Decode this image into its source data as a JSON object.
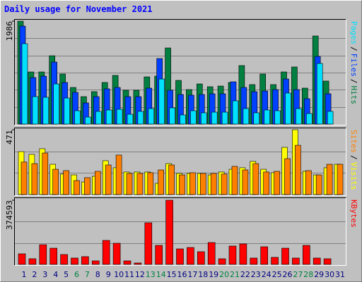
{
  "chart_data": [
    {
      "type": "bar",
      "title": "Daily usage for November 2021",
      "separator": "/",
      "ylim": [
        0,
        1986
      ],
      "yticks": [
        1986
      ],
      "series": [
        {
          "name": "Hits",
          "color": "#008040",
          "values": [
            1986,
            1006,
            1006,
            1319,
            966,
            707,
            530,
            626,
            803,
            939,
            653,
            653,
            911,
            925,
            1469,
            843,
            666,
            775,
            721,
            734,
            803,
            1129,
            762,
            966,
            762,
            1006,
            1102,
            694,
            1700,
            830,
            0
          ]
        },
        {
          "name": "Files",
          "color": "#0040ff",
          "values": [
            1891,
            898,
            925,
            1197,
            803,
            612,
            408,
            530,
            680,
            707,
            530,
            530,
            694,
            1265,
            653,
            571,
            558,
            571,
            585,
            585,
            816,
            707,
            626,
            639,
            666,
            870,
            666,
            490,
            1306,
            585,
            0
          ]
        },
        {
          "name": "Pages",
          "color": "#00e0ff",
          "values": [
            1551,
            530,
            517,
            775,
            503,
            258,
            136,
            245,
            272,
            286,
            190,
            245,
            299,
            870,
            313,
            177,
            258,
            218,
            231,
            231,
            449,
            299,
            218,
            272,
            258,
            599,
            299,
            204,
            1170,
            245,
            0
          ]
        }
      ]
    },
    {
      "type": "bar",
      "separator": "/",
      "ylim": [
        0,
        471
      ],
      "yticks": [
        471
      ],
      "series": [
        {
          "name": "Visits",
          "color": "#ffff00",
          "values": [
            312,
            292,
            333,
            220,
            149,
            143,
            92,
            133,
            246,
            195,
            164,
            164,
            164,
            82,
            225,
            154,
            154,
            154,
            143,
            164,
            184,
            195,
            241,
            184,
            159,
            343,
            471,
            169,
            143,
            195,
            220
          ]
        },
        {
          "name": "Sites",
          "color": "#ff8000",
          "values": [
            236,
            225,
            302,
            184,
            174,
            102,
            123,
            169,
            215,
            287,
            154,
            154,
            159,
            179,
            215,
            143,
            159,
            154,
            154,
            149,
            205,
            179,
            225,
            164,
            169,
            261,
            358,
            174,
            143,
            220,
            220
          ]
        }
      ]
    },
    {
      "type": "bar",
      "ylim": [
        0,
        374593
      ],
      "yticks": [
        374593
      ],
      "categories": [
        "1",
        "2",
        "3",
        "4",
        "5",
        "6",
        "7",
        "8",
        "9",
        "10",
        "11",
        "12",
        "13",
        "14",
        "15",
        "16",
        "17",
        "18",
        "19",
        "20",
        "21",
        "22",
        "23",
        "24",
        "25",
        "26",
        "27",
        "28",
        "29",
        "30",
        "31"
      ],
      "category_colors": [
        "#000080",
        "#000080",
        "#000080",
        "#000080",
        "#000080",
        "#008040",
        "#008040",
        "#000080",
        "#000080",
        "#000080",
        "#000080",
        "#000080",
        "#008040",
        "#008040",
        "#000080",
        "#000080",
        "#000080",
        "#000080",
        "#000080",
        "#008040",
        "#008040",
        "#000080",
        "#000080",
        "#000080",
        "#000080",
        "#000080",
        "#008040",
        "#008040",
        "#000080",
        "#000080",
        "#000080"
      ],
      "series": [
        {
          "name": "KBytes",
          "color": "#ff0000",
          "values": [
            61700,
            33000,
            115000,
            94700,
            57600,
            37000,
            45300,
            20600,
            140000,
            123500,
            20600,
            8200,
            242900,
            111100,
            374593,
            90600,
            98800,
            74100,
            127600,
            32900,
            107000,
            119400,
            37000,
            102900,
            41200,
            94700,
            37000,
            111100,
            37000,
            32900,
            0
          ]
        }
      ]
    }
  ]
}
